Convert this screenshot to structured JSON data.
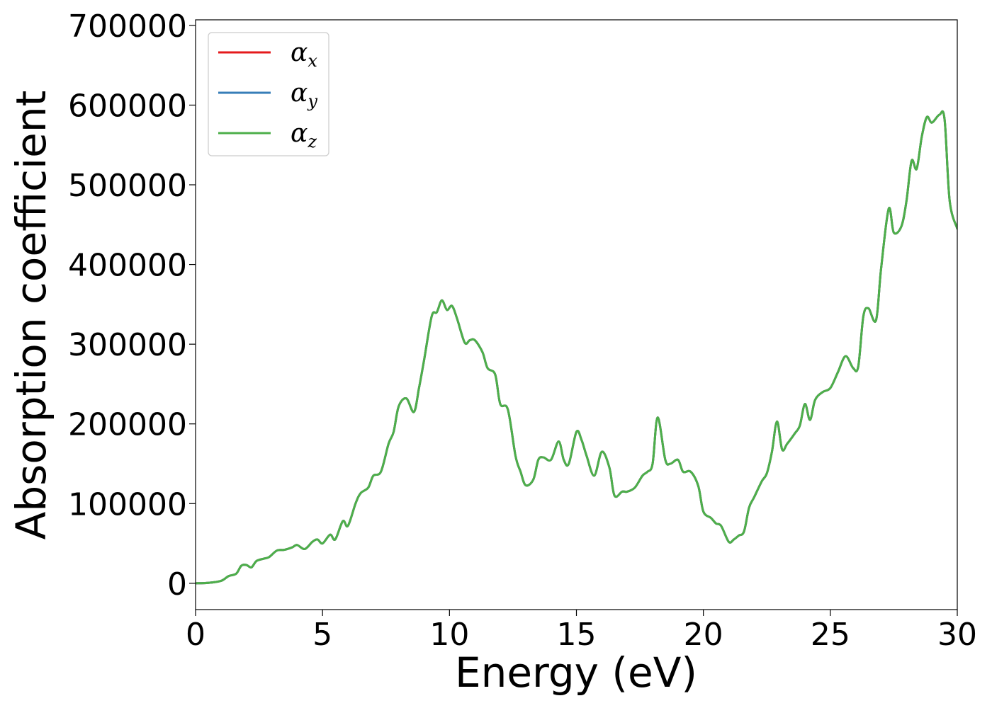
{
  "chart_data": {
    "type": "line",
    "title": "",
    "xlabel": "Energy (eV)",
    "ylabel": "Absorption coefficient",
    "xlim": [
      0,
      30
    ],
    "ylim": [
      -33000,
      707000
    ],
    "xticks": [
      0,
      5,
      10,
      15,
      20,
      25,
      30
    ],
    "xtick_labels": [
      "0",
      "5",
      "10",
      "15",
      "20",
      "25",
      "30"
    ],
    "yticks": [
      0,
      100000,
      200000,
      300000,
      400000,
      500000,
      600000,
      700000
    ],
    "ytick_labels": [
      "0",
      "100000",
      "200000",
      "300000",
      "400000",
      "500000",
      "600000",
      "700000"
    ],
    "grid": false,
    "legend_position": "top-left",
    "x": [
      0,
      0.5,
      1.0,
      1.3,
      1.6,
      1.8,
      2.0,
      2.2,
      2.4,
      2.7,
      2.9,
      3.2,
      3.5,
      3.8,
      4.0,
      4.3,
      4.6,
      4.8,
      5.0,
      5.3,
      5.5,
      5.8,
      6.0,
      6.3,
      6.5,
      6.8,
      7.0,
      7.3,
      7.6,
      7.8,
      8.0,
      8.3,
      8.6,
      8.8,
      9.0,
      9.3,
      9.5,
      9.7,
      9.9,
      10.1,
      10.3,
      10.6,
      10.8,
      11.0,
      11.3,
      11.5,
      11.8,
      12.0,
      12.3,
      12.6,
      12.8,
      13.0,
      13.3,
      13.5,
      13.7,
      14.0,
      14.3,
      14.5,
      14.7,
      15.0,
      15.2,
      15.4,
      15.7,
      16.0,
      16.3,
      16.5,
      16.8,
      17.0,
      17.3,
      17.6,
      17.8,
      18.0,
      18.2,
      18.5,
      18.7,
      19.0,
      19.2,
      19.5,
      19.8,
      20.0,
      20.3,
      20.5,
      20.7,
      21.0,
      21.2,
      21.4,
      21.6,
      21.8,
      22.0,
      22.3,
      22.5,
      22.7,
      22.9,
      23.1,
      23.3,
      23.6,
      23.8,
      24.0,
      24.2,
      24.4,
      24.7,
      25.0,
      25.3,
      25.6,
      25.9,
      26.1,
      26.3,
      26.5,
      26.8,
      27.0,
      27.3,
      27.5,
      27.8,
      28.0,
      28.2,
      28.4,
      28.6,
      28.8,
      29.0,
      29.3,
      29.5,
      29.7,
      30.0
    ],
    "series": [
      {
        "name": "α",
        "subscript": "x",
        "color": "#e41a1c",
        "values": [
          0,
          500,
          3000,
          9000,
          12000,
          22000,
          23000,
          20000,
          28000,
          31000,
          33000,
          41000,
          42000,
          45000,
          48000,
          43000,
          52000,
          55000,
          50000,
          61000,
          55000,
          78000,
          72000,
          100000,
          113000,
          120000,
          135000,
          140000,
          175000,
          190000,
          222000,
          232000,
          215000,
          245000,
          280000,
          335000,
          340000,
          355000,
          343000,
          348000,
          332000,
          302000,
          305000,
          305000,
          290000,
          270000,
          262000,
          225000,
          218000,
          160000,
          140000,
          123000,
          130000,
          155000,
          158000,
          155000,
          178000,
          155000,
          150000,
          190000,
          180000,
          160000,
          135000,
          165000,
          145000,
          110000,
          115000,
          115000,
          120000,
          135000,
          140000,
          150000,
          208000,
          155000,
          150000,
          155000,
          140000,
          140000,
          122000,
          90000,
          82000,
          75000,
          72000,
          52000,
          55000,
          60000,
          65000,
          95000,
          108000,
          128000,
          138000,
          165000,
          203000,
          168000,
          175000,
          188000,
          198000,
          225000,
          205000,
          230000,
          240000,
          245000,
          265000,
          285000,
          270000,
          272000,
          335000,
          345000,
          330000,
          395000,
          470000,
          440000,
          448000,
          480000,
          530000,
          520000,
          560000,
          585000,
          578000,
          588000,
          582000,
          480000,
          445000
        ]
      },
      {
        "name": "α",
        "subscript": "y",
        "color": "#377eb8",
        "values": [
          0,
          500,
          3000,
          9000,
          12000,
          22000,
          23000,
          20000,
          28000,
          31000,
          33000,
          41000,
          42000,
          45000,
          48000,
          43000,
          52000,
          55000,
          50000,
          61000,
          55000,
          78000,
          72000,
          100000,
          113000,
          120000,
          135000,
          140000,
          175000,
          190000,
          222000,
          232000,
          215000,
          245000,
          280000,
          335000,
          340000,
          355000,
          343000,
          348000,
          332000,
          302000,
          305000,
          305000,
          290000,
          270000,
          262000,
          225000,
          218000,
          160000,
          140000,
          123000,
          130000,
          155000,
          158000,
          155000,
          178000,
          155000,
          150000,
          190000,
          180000,
          160000,
          135000,
          165000,
          145000,
          110000,
          115000,
          115000,
          120000,
          135000,
          140000,
          150000,
          208000,
          155000,
          150000,
          155000,
          140000,
          140000,
          122000,
          90000,
          82000,
          75000,
          72000,
          52000,
          55000,
          60000,
          65000,
          95000,
          108000,
          128000,
          138000,
          165000,
          203000,
          168000,
          175000,
          188000,
          198000,
          225000,
          205000,
          230000,
          240000,
          245000,
          265000,
          285000,
          270000,
          272000,
          335000,
          345000,
          330000,
          395000,
          470000,
          440000,
          448000,
          480000,
          530000,
          520000,
          560000,
          585000,
          578000,
          588000,
          582000,
          480000,
          445000
        ]
      },
      {
        "name": "α",
        "subscript": "z",
        "color": "#4daf4a",
        "values": [
          0,
          500,
          3000,
          9000,
          12000,
          22000,
          23000,
          20000,
          28000,
          31000,
          33000,
          41000,
          42000,
          45000,
          48000,
          43000,
          52000,
          55000,
          50000,
          61000,
          55000,
          78000,
          72000,
          100000,
          113000,
          120000,
          135000,
          140000,
          175000,
          190000,
          222000,
          232000,
          215000,
          245000,
          280000,
          335000,
          340000,
          355000,
          343000,
          348000,
          332000,
          302000,
          305000,
          305000,
          290000,
          270000,
          262000,
          225000,
          218000,
          160000,
          140000,
          123000,
          130000,
          155000,
          158000,
          155000,
          178000,
          155000,
          150000,
          190000,
          180000,
          160000,
          135000,
          165000,
          145000,
          110000,
          115000,
          115000,
          120000,
          135000,
          140000,
          150000,
          208000,
          155000,
          150000,
          155000,
          140000,
          140000,
          122000,
          90000,
          82000,
          75000,
          72000,
          52000,
          55000,
          60000,
          65000,
          95000,
          108000,
          128000,
          138000,
          165000,
          203000,
          168000,
          175000,
          188000,
          198000,
          225000,
          205000,
          230000,
          240000,
          245000,
          265000,
          285000,
          270000,
          272000,
          335000,
          345000,
          330000,
          395000,
          470000,
          440000,
          448000,
          480000,
          530000,
          520000,
          560000,
          585000,
          578000,
          588000,
          582000,
          480000,
          445000
        ]
      }
    ]
  }
}
